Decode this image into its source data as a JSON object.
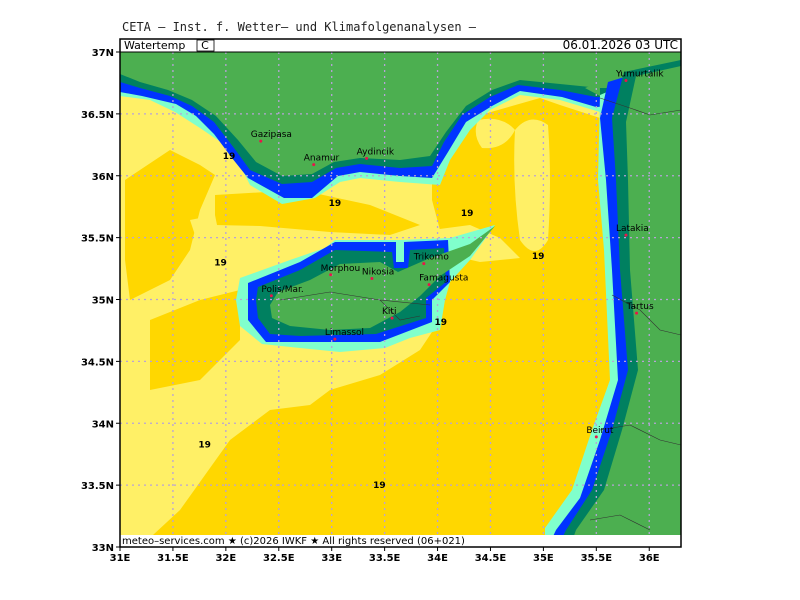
{
  "header": {
    "title": "CETA – Inst. f. Wetter– und Klimafolgenanalysen –",
    "param_label": "Watertemp",
    "unit": "C",
    "datetime": "06.01.2026 03 UTC"
  },
  "footer": {
    "credit": "meteo–services.com ★ (c)2026 IWKF ★ All rights reserved (06+021)"
  },
  "axes": {
    "lon_ticks": [
      "31E",
      "31.5E",
      "32E",
      "32.5E",
      "33E",
      "33.5E",
      "34E",
      "34.5E",
      "35E",
      "35.5E",
      "36E"
    ],
    "lat_ticks": [
      "37N",
      "36.5N",
      "36N",
      "35.5N",
      "35N",
      "34.5N",
      "34N",
      "33.5N",
      "33N"
    ],
    "lon_range": [
      31.0,
      36.3
    ],
    "lat_range": [
      33.0,
      37.0
    ]
  },
  "colors": {
    "sea_warm": "#ffd700",
    "sea_cool": "#fff066",
    "land": "#4caf50",
    "coast_dark": "#008060",
    "coast_blue": "#0033ff",
    "coast_light": "#80ffcc"
  },
  "cities": [
    {
      "name": "Yumurtalik",
      "lon": 35.78,
      "lat": 36.77
    },
    {
      "name": "Gazipasa",
      "lon": 32.33,
      "lat": 36.28
    },
    {
      "name": "Anamur",
      "lon": 32.83,
      "lat": 36.09
    },
    {
      "name": "Aydincik",
      "lon": 33.33,
      "lat": 36.14
    },
    {
      "name": "Latakia",
      "lon": 35.78,
      "lat": 35.52
    },
    {
      "name": "Trikomo",
      "lon": 33.87,
      "lat": 35.29
    },
    {
      "name": "Morphou",
      "lon": 32.99,
      "lat": 35.2
    },
    {
      "name": "Nikosia",
      "lon": 33.38,
      "lat": 35.17
    },
    {
      "name": "Famagusta",
      "lon": 33.92,
      "lat": 35.12
    },
    {
      "name": "Polis/Mar.",
      "lon": 32.43,
      "lat": 35.03
    },
    {
      "name": "Kiti",
      "lon": 33.57,
      "lat": 34.85
    },
    {
      "name": "Tartus",
      "lon": 35.88,
      "lat": 34.89
    },
    {
      "name": "Limassol",
      "lon": 33.03,
      "lat": 34.68
    },
    {
      "name": "Beirut",
      "lon": 35.5,
      "lat": 33.89
    }
  ],
  "contour_labels": [
    {
      "text": "19",
      "lon": 32.03,
      "lat": 36.16
    },
    {
      "text": "19",
      "lon": 33.03,
      "lat": 35.78
    },
    {
      "text": "19",
      "lon": 34.28,
      "lat": 35.7
    },
    {
      "text": "19",
      "lon": 31.95,
      "lat": 35.3
    },
    {
      "text": "19",
      "lon": 34.95,
      "lat": 35.35
    },
    {
      "text": "19",
      "lon": 34.03,
      "lat": 34.82
    },
    {
      "text": "19",
      "lon": 31.8,
      "lat": 33.83
    },
    {
      "text": "19",
      "lon": 33.45,
      "lat": 33.5
    }
  ]
}
